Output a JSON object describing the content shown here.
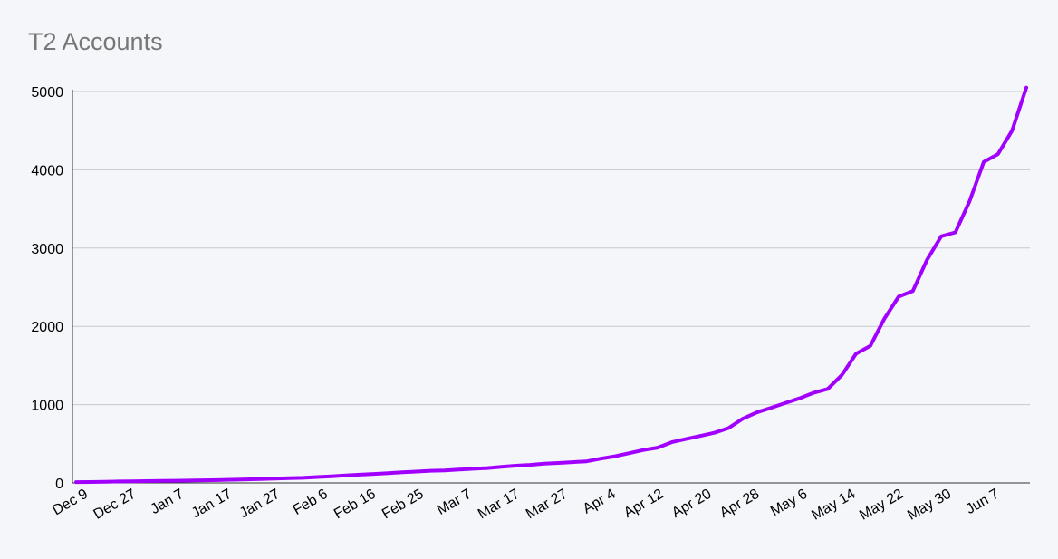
{
  "chart_data": {
    "type": "line",
    "title": "T2 Accounts",
    "xlabel": "",
    "ylabel": "",
    "ylim": [
      0,
      5000
    ],
    "y_ticks": [
      "0",
      "1000",
      "2000",
      "3000",
      "4000",
      "5000"
    ],
    "y_tick_values": [
      0,
      1000,
      2000,
      3000,
      4000,
      5000
    ],
    "x_ticks": [
      "Dec 9",
      "Dec 27",
      "Jan 7",
      "Jan 17",
      "Jan 27",
      "Feb 6",
      "Feb 16",
      "Feb 25",
      "Mar 7",
      "Mar 17",
      "Mar 27",
      "Apr 4",
      "Apr 12",
      "Apr 20",
      "Apr 28",
      "May 6",
      "May 14",
      "May 22",
      "May 30",
      "Jun 7"
    ],
    "grid": "horizontal",
    "legend": "none",
    "line_color": "#a100ff",
    "series": [
      {
        "values": [
          10,
          12,
          15,
          18,
          20,
          23,
          25,
          28,
          30,
          33,
          36,
          40,
          45,
          50,
          55,
          60,
          65,
          75,
          85,
          95,
          105,
          115,
          125,
          135,
          145,
          155,
          160,
          170,
          180,
          190,
          205,
          220,
          230,
          245,
          255,
          265,
          275,
          310,
          340,
          380,
          420,
          450,
          520,
          560,
          600,
          640,
          700,
          820,
          900,
          960,
          1020,
          1080,
          1150,
          1200,
          1380,
          1650,
          1750,
          2100,
          2380,
          2450,
          2850,
          3150,
          3200,
          3600,
          4100,
          4200,
          4500,
          5050
        ]
      }
    ]
  }
}
